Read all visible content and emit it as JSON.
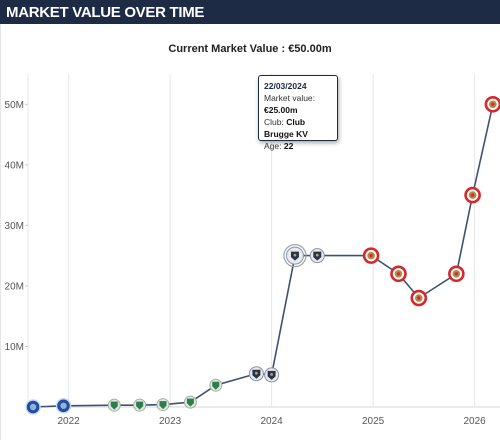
{
  "header": {
    "title": "MARKET VALUE OVER TIME"
  },
  "chart_data": {
    "type": "line",
    "subtitle": "Current Market Value : €50.00m",
    "y_unit": "€m",
    "ylim": [
      0,
      55
    ],
    "y_ticks": [
      10,
      20,
      30,
      40,
      50
    ],
    "y_tick_labels": [
      "10M",
      "20M",
      "30M",
      "40M",
      "50M"
    ],
    "x_ticks": [
      2022,
      2023,
      2024,
      2025,
      2026
    ],
    "x_tick_labels": [
      "2022",
      "2023",
      "2024",
      "2025",
      "2026"
    ],
    "grid": "vertical",
    "series": [
      {
        "points": [
          {
            "x": 2021.65,
            "y": 0.0,
            "club": "blue"
          },
          {
            "x": 2021.95,
            "y": 0.2,
            "club": "blue"
          },
          {
            "x": 2022.45,
            "y": 0.3,
            "club": "green"
          },
          {
            "x": 2022.7,
            "y": 0.3,
            "club": "green"
          },
          {
            "x": 2022.93,
            "y": 0.4,
            "club": "green"
          },
          {
            "x": 2023.2,
            "y": 0.8,
            "club": "green"
          },
          {
            "x": 2023.45,
            "y": 3.6,
            "club": "green"
          },
          {
            "x": 2023.85,
            "y": 5.5,
            "club": "brugge"
          },
          {
            "x": 2024.0,
            "y": 5.3,
            "club": "brugge"
          },
          {
            "x": 2024.23,
            "y": 25.0,
            "club": "brugge"
          },
          {
            "x": 2024.45,
            "y": 25.0,
            "club": "brugge"
          },
          {
            "x": 2024.98,
            "y": 25.0,
            "club": "red"
          },
          {
            "x": 2025.25,
            "y": 22.0,
            "club": "red"
          },
          {
            "x": 2025.45,
            "y": 18.0,
            "club": "red"
          },
          {
            "x": 2025.82,
            "y": 22.0,
            "club": "red"
          },
          {
            "x": 2025.98,
            "y": 35.0,
            "club": "red"
          },
          {
            "x": 2026.18,
            "y": 50.0,
            "club": "red"
          }
        ]
      }
    ],
    "tooltip": {
      "date": "22/03/2024",
      "market_value_label": "Market value: ",
      "market_value": "€25.00m",
      "club_label": "Club: ",
      "club": "Club Brugge KV",
      "age_label": "Age: ",
      "age": "22"
    }
  },
  "colors": {
    "header_bg": "#1d2b44",
    "line": "#3f5270",
    "grid": "#e4e7eb",
    "club_blue": "#1e4fa3",
    "club_green": "#2f7d4a",
    "club_brugge": "#26344f",
    "club_red": "#d8262b"
  }
}
